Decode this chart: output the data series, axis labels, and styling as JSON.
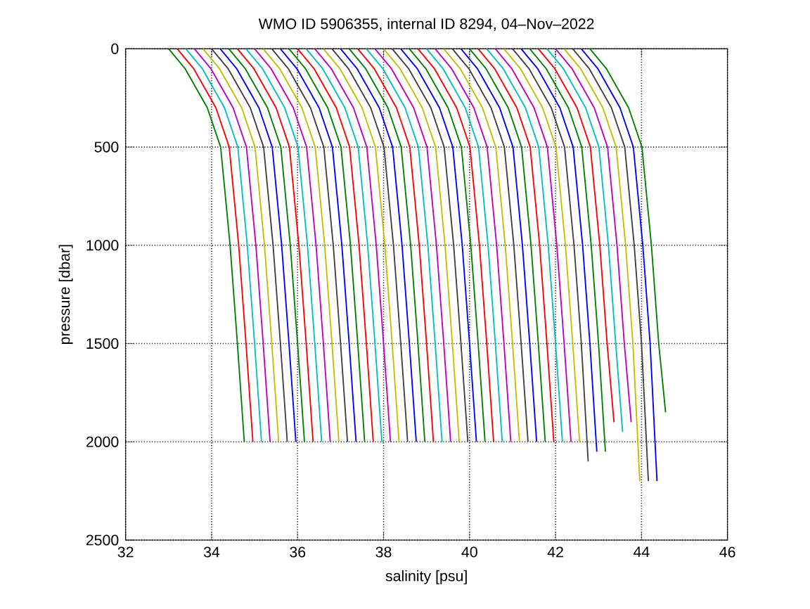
{
  "chart_data": {
    "type": "line",
    "title": "WMO ID 5906355, internal ID 8294, 04–Nov–2022",
    "xlabel": "salinity [psu]",
    "ylabel": "pressure [dbar]",
    "xlim": [
      32,
      46
    ],
    "xticks": [
      32,
      34,
      36,
      38,
      40,
      42,
      44,
      46
    ],
    "ylim": [
      2500,
      0
    ],
    "yticks": [
      0,
      500,
      1000,
      1500,
      2000,
      2500
    ],
    "grid": true,
    "marker": "none",
    "line_style": "solid",
    "series": [
      {
        "color": "#008000",
        "x": [
          33.0,
          33.38,
          33.9,
          34.21,
          34.43,
          34.6,
          34.76
        ],
        "values": [
          0,
          100,
          300,
          500,
          1000,
          1500,
          2000
        ]
      },
      {
        "color": "#ff0000",
        "x": [
          33.2,
          33.58,
          34.1,
          34.41,
          34.63,
          34.8,
          34.96
        ],
        "values": [
          0,
          100,
          300,
          500,
          1000,
          1500,
          2000
        ]
      },
      {
        "color": "#00bfbf",
        "x": [
          33.4,
          33.78,
          34.3,
          34.61,
          34.83,
          35.0,
          35.16
        ],
        "values": [
          0,
          100,
          300,
          500,
          1000,
          1500,
          2000
        ]
      },
      {
        "color": "#bf00bf",
        "x": [
          33.6,
          33.98,
          34.5,
          34.81,
          35.03,
          35.2,
          35.36
        ],
        "values": [
          0,
          100,
          300,
          500,
          1000,
          1500,
          2000
        ]
      },
      {
        "color": "#bfbf00",
        "x": [
          33.8,
          34.18,
          34.7,
          35.01,
          35.23,
          35.4,
          35.56
        ],
        "values": [
          0,
          100,
          300,
          500,
          1000,
          1500,
          2000
        ]
      },
      {
        "color": "#404040",
        "x": [
          34.0,
          34.38,
          34.9,
          35.21,
          35.43,
          35.6,
          35.76
        ],
        "values": [
          0,
          100,
          300,
          500,
          1000,
          1500,
          2000
        ]
      },
      {
        "color": "#0000ff",
        "x": [
          34.2,
          34.58,
          35.1,
          35.41,
          35.63,
          35.8,
          35.96
        ],
        "values": [
          0,
          100,
          300,
          500,
          1000,
          1500,
          2000
        ]
      },
      {
        "color": "#008000",
        "x": [
          34.4,
          34.78,
          35.3,
          35.61,
          35.83,
          36.0,
          36.16
        ],
        "values": [
          0,
          100,
          300,
          500,
          1000,
          1500,
          2000
        ]
      },
      {
        "color": "#ff0000",
        "x": [
          34.6,
          34.98,
          35.5,
          35.81,
          36.03,
          36.2,
          36.36
        ],
        "values": [
          0,
          100,
          300,
          500,
          1000,
          1500,
          2000
        ]
      },
      {
        "color": "#00bfbf",
        "x": [
          34.8,
          35.18,
          35.7,
          36.01,
          36.23,
          36.4,
          36.56
        ],
        "values": [
          0,
          100,
          300,
          500,
          1000,
          1500,
          2000
        ]
      },
      {
        "color": "#bf00bf",
        "x": [
          35.0,
          35.38,
          35.9,
          36.21,
          36.43,
          36.6,
          36.76
        ],
        "values": [
          0,
          100,
          300,
          500,
          1000,
          1500,
          2000
        ]
      },
      {
        "color": "#bfbf00",
        "x": [
          35.2,
          35.58,
          36.1,
          36.41,
          36.63,
          36.8,
          36.96
        ],
        "values": [
          0,
          100,
          300,
          500,
          1000,
          1500,
          2000
        ]
      },
      {
        "color": "#404040",
        "x": [
          35.4,
          35.78,
          36.3,
          36.61,
          36.83,
          37.0,
          37.16
        ],
        "values": [
          0,
          100,
          300,
          500,
          1000,
          1500,
          2000
        ]
      },
      {
        "color": "#0000ff",
        "x": [
          35.6,
          35.98,
          36.5,
          36.81,
          37.03,
          37.2,
          37.36
        ],
        "values": [
          0,
          100,
          300,
          500,
          1000,
          1500,
          2000
        ]
      },
      {
        "color": "#008000",
        "x": [
          35.8,
          36.18,
          36.7,
          37.01,
          37.23,
          37.4,
          37.56
        ],
        "values": [
          0,
          100,
          300,
          500,
          1000,
          1500,
          2000
        ]
      },
      {
        "color": "#ff0000",
        "x": [
          36.0,
          36.38,
          36.9,
          37.21,
          37.43,
          37.6,
          37.76
        ],
        "values": [
          0,
          100,
          300,
          500,
          1000,
          1500,
          2000
        ]
      },
      {
        "color": "#00bfbf",
        "x": [
          36.2,
          36.58,
          37.1,
          37.41,
          37.63,
          37.8,
          37.96
        ],
        "values": [
          0,
          100,
          300,
          500,
          1000,
          1500,
          2000
        ]
      },
      {
        "color": "#bf00bf",
        "x": [
          36.4,
          36.78,
          37.3,
          37.61,
          37.83,
          38.0,
          38.16
        ],
        "values": [
          0,
          100,
          300,
          500,
          1000,
          1500,
          2000
        ]
      },
      {
        "color": "#bfbf00",
        "x": [
          36.6,
          36.98,
          37.5,
          37.81,
          38.03,
          38.2,
          38.36
        ],
        "values": [
          0,
          100,
          300,
          500,
          1000,
          1500,
          2000
        ]
      },
      {
        "color": "#404040",
        "x": [
          36.8,
          37.18,
          37.7,
          38.01,
          38.23,
          38.4,
          38.56
        ],
        "values": [
          0,
          100,
          300,
          500,
          1000,
          1500,
          2000
        ]
      },
      {
        "color": "#0000ff",
        "x": [
          37.0,
          37.38,
          37.9,
          38.21,
          38.43,
          38.6,
          38.76
        ],
        "values": [
          0,
          100,
          300,
          500,
          1000,
          1500,
          2000
        ]
      },
      {
        "color": "#008000",
        "x": [
          37.2,
          37.58,
          38.1,
          38.41,
          38.63,
          38.8,
          38.96
        ],
        "values": [
          0,
          100,
          300,
          500,
          1000,
          1500,
          2000
        ]
      },
      {
        "color": "#ff0000",
        "x": [
          37.4,
          37.78,
          38.3,
          38.61,
          38.83,
          39.0,
          39.16
        ],
        "values": [
          0,
          100,
          300,
          500,
          1000,
          1500,
          2000
        ]
      },
      {
        "color": "#00bfbf",
        "x": [
          37.6,
          37.98,
          38.5,
          38.81,
          39.03,
          39.2,
          39.36
        ],
        "values": [
          0,
          100,
          300,
          500,
          1000,
          1500,
          2000
        ]
      },
      {
        "color": "#bf00bf",
        "x": [
          37.8,
          38.18,
          38.7,
          39.01,
          39.23,
          39.4,
          39.56
        ],
        "values": [
          0,
          100,
          300,
          500,
          1000,
          1500,
          2000
        ]
      },
      {
        "color": "#bfbf00",
        "x": [
          38.0,
          38.38,
          38.9,
          39.21,
          39.43,
          39.6,
          39.76
        ],
        "values": [
          0,
          100,
          300,
          500,
          1000,
          1500,
          2000
        ]
      },
      {
        "color": "#404040",
        "x": [
          38.2,
          38.58,
          39.1,
          39.41,
          39.63,
          39.8,
          39.96
        ],
        "values": [
          0,
          100,
          300,
          500,
          1000,
          1500,
          2000
        ]
      },
      {
        "color": "#0000ff",
        "x": [
          38.4,
          38.78,
          39.3,
          39.61,
          39.83,
          40.0,
          40.16
        ],
        "values": [
          0,
          100,
          300,
          500,
          1000,
          1500,
          2000
        ]
      },
      {
        "color": "#008000",
        "x": [
          38.6,
          38.98,
          39.5,
          39.81,
          40.03,
          40.2,
          40.36
        ],
        "values": [
          0,
          100,
          300,
          500,
          1000,
          1500,
          2000
        ]
      },
      {
        "color": "#ff0000",
        "x": [
          38.8,
          39.18,
          39.7,
          40.01,
          40.23,
          40.4,
          40.56
        ],
        "values": [
          0,
          100,
          300,
          500,
          1000,
          1500,
          2000
        ]
      },
      {
        "color": "#00bfbf",
        "x": [
          39.0,
          39.38,
          39.9,
          40.21,
          40.43,
          40.6,
          40.76
        ],
        "values": [
          0,
          100,
          300,
          500,
          1000,
          1500,
          2000
        ]
      },
      {
        "color": "#bf00bf",
        "x": [
          39.2,
          39.58,
          40.1,
          40.41,
          40.63,
          40.8,
          40.96
        ],
        "values": [
          0,
          100,
          300,
          500,
          1000,
          1500,
          2000
        ]
      },
      {
        "color": "#bfbf00",
        "x": [
          39.4,
          39.78,
          40.3,
          40.61,
          40.83,
          41.0,
          41.16
        ],
        "values": [
          0,
          100,
          300,
          500,
          1000,
          1500,
          2000
        ]
      },
      {
        "color": "#404040",
        "x": [
          39.6,
          39.98,
          40.5,
          40.81,
          41.03,
          41.2,
          41.36
        ],
        "values": [
          0,
          100,
          300,
          500,
          1000,
          1500,
          2000
        ]
      },
      {
        "color": "#0000ff",
        "x": [
          39.8,
          40.18,
          40.7,
          41.01,
          41.23,
          41.4,
          41.56
        ],
        "values": [
          0,
          100,
          300,
          500,
          1000,
          1500,
          2000
        ]
      },
      {
        "color": "#008000",
        "x": [
          40.0,
          40.38,
          40.9,
          41.21,
          41.43,
          41.6,
          41.76
        ],
        "values": [
          0,
          100,
          300,
          500,
          1000,
          1500,
          2000
        ]
      },
      {
        "color": "#ff0000",
        "x": [
          40.2,
          40.58,
          41.1,
          41.41,
          41.63,
          41.8,
          41.96
        ],
        "values": [
          0,
          100,
          300,
          500,
          1000,
          1500,
          2000
        ]
      },
      {
        "color": "#00bfbf",
        "x": [
          40.4,
          40.78,
          41.3,
          41.61,
          41.83,
          42.0,
          42.16
        ],
        "values": [
          0,
          100,
          300,
          500,
          1000,
          1500,
          2000
        ]
      },
      {
        "color": "#bf00bf",
        "x": [
          40.6,
          40.98,
          41.5,
          41.81,
          42.03,
          42.2,
          42.36
        ],
        "values": [
          0,
          100,
          300,
          500,
          1000,
          1500,
          2000
        ]
      },
      {
        "color": "#bfbf00",
        "x": [
          40.8,
          41.18,
          41.7,
          42.01,
          42.23,
          42.4,
          42.56
        ],
        "values": [
          0,
          100,
          300,
          500,
          1000,
          1500,
          2000
        ]
      },
      {
        "color": "#404040",
        "x": [
          41.0,
          41.38,
          41.9,
          42.21,
          42.43,
          42.6,
          42.76
        ],
        "values": [
          0,
          100,
          300,
          500,
          1000,
          1500,
          2100
        ]
      },
      {
        "color": "#0000ff",
        "x": [
          41.2,
          41.58,
          42.1,
          42.41,
          42.63,
          42.8,
          42.96
        ],
        "values": [
          0,
          100,
          300,
          500,
          1000,
          1500,
          2050
        ]
      },
      {
        "color": "#008000",
        "x": [
          41.4,
          41.78,
          42.3,
          42.61,
          42.83,
          43.0,
          43.16
        ],
        "values": [
          0,
          100,
          300,
          500,
          1000,
          1500,
          2050
        ]
      },
      {
        "color": "#ff0000",
        "x": [
          41.6,
          41.98,
          42.5,
          42.81,
          43.03,
          43.2,
          43.36
        ],
        "values": [
          0,
          100,
          300,
          500,
          1000,
          1500,
          1900
        ]
      },
      {
        "color": "#00bfbf",
        "x": [
          41.8,
          42.18,
          42.7,
          43.01,
          43.23,
          43.4,
          43.56
        ],
        "values": [
          0,
          100,
          300,
          500,
          1000,
          1500,
          1950
        ]
      },
      {
        "color": "#bf00bf",
        "x": [
          42.0,
          42.38,
          42.9,
          43.21,
          43.43,
          43.6,
          43.76
        ],
        "values": [
          0,
          100,
          300,
          500,
          1000,
          1500,
          1900
        ]
      },
      {
        "color": "#bfbf00",
        "x": [
          42.2,
          42.58,
          43.1,
          43.41,
          43.63,
          43.8,
          43.96
        ],
        "values": [
          0,
          100,
          300,
          500,
          1000,
          1500,
          2200
        ]
      },
      {
        "color": "#404040",
        "x": [
          42.4,
          42.78,
          43.3,
          43.61,
          43.83,
          44.0,
          44.16
        ],
        "values": [
          0,
          100,
          300,
          500,
          1000,
          1500,
          2200
        ]
      },
      {
        "color": "#0000ff",
        "x": [
          42.6,
          42.98,
          43.5,
          43.81,
          44.03,
          44.2,
          44.36
        ],
        "values": [
          0,
          100,
          300,
          500,
          1000,
          1500,
          2200
        ]
      },
      {
        "color": "#008000",
        "x": [
          42.8,
          43.18,
          43.7,
          44.01,
          44.23,
          44.4,
          44.56
        ],
        "values": [
          0,
          100,
          300,
          500,
          1000,
          1500,
          1850
        ]
      }
    ]
  }
}
